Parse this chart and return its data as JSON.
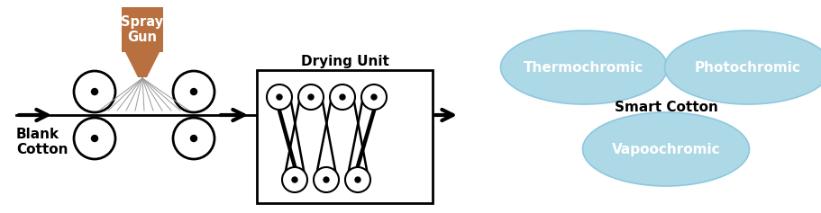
{
  "bg_color": "#ffffff",
  "roller_color": "#ffffff",
  "roller_edge": "#000000",
  "spray_gun_color": "#b87040",
  "arrow_color": "#000000",
  "ellipse_fill": "#add8e6",
  "ellipse_edge": "#8ec8e0",
  "line_color": "#000000",
  "spray_lines_color": "#999999",
  "drying_box_color": "#ffffff",
  "drying_box_edge": "#000000",
  "text_blank_cotton": "Blank\nCotton",
  "text_spray_gun": "Spray\nGun",
  "text_drying_unit": "Drying Unit",
  "text_thermochromic": "Thermochromic",
  "text_photochromic": "Photochromic",
  "text_vapoochromic": "Vapoochromic",
  "text_smart_cotton": "Smart Cotton",
  "figsize": [
    9.12,
    2.37
  ],
  "dpi": 100
}
